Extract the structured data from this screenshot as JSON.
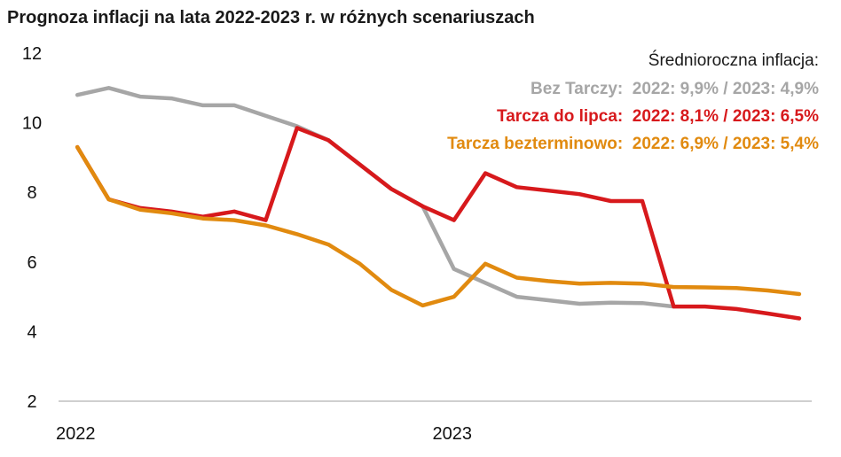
{
  "title": "Prognoza inflacji na lata 2022-2023 r. w różnych scenariuszach",
  "legend": {
    "heading": "Średnioroczna inflacja:",
    "entries": [
      {
        "label": "Bez Tarczy:",
        "value": "2022: 9,9% / 2023: 4,9%",
        "color": "#a6a6a6"
      },
      {
        "label": "Tarcza do lipca:",
        "value": "2022: 8,1% / 2023: 6,5%",
        "color": "#d7191c"
      },
      {
        "label": "Tarcza bezterminowo:",
        "value": "2022: 6,9% / 2023: 5,4%",
        "color": "#e18a0f"
      }
    ]
  },
  "chart_data": {
    "type": "line",
    "title": "Prognoza inflacji na lata 2022-2023 r. w różnych scenariuszach",
    "x": [
      1,
      2,
      3,
      4,
      5,
      6,
      7,
      8,
      9,
      10,
      11,
      12,
      13,
      14,
      15,
      16,
      17,
      18,
      19,
      20,
      21,
      22,
      23,
      24
    ],
    "x_tick_labels": [
      {
        "x": 1,
        "label": "2022"
      },
      {
        "x": 13,
        "label": "2023"
      }
    ],
    "xlim": [
      0.4,
      24.4
    ],
    "ylim": [
      2,
      12
    ],
    "y_ticks": [
      2,
      4,
      6,
      8,
      10,
      12
    ],
    "grid": false,
    "series": [
      {
        "name": "Bez Tarczy",
        "color": "#a6a6a6",
        "values": [
          10.8,
          11.0,
          10.75,
          10.7,
          10.5,
          10.5,
          10.2,
          9.9,
          9.5,
          8.8,
          8.1,
          7.6,
          5.8,
          5.4,
          5.0,
          4.9,
          4.8,
          4.83,
          4.82,
          4.72,
          null,
          null,
          null,
          null
        ]
      },
      {
        "name": "Tarcza do lipca",
        "color": "#d7191c",
        "values": [
          9.3,
          7.8,
          7.55,
          7.45,
          7.3,
          7.45,
          7.2,
          9.85,
          9.5,
          8.8,
          8.1,
          7.6,
          7.2,
          8.55,
          8.15,
          8.05,
          7.95,
          7.75,
          7.75,
          4.72,
          4.72,
          4.65,
          4.52,
          4.38
        ]
      },
      {
        "name": "Tarcza bezterminowo",
        "color": "#e18a0f",
        "values": [
          9.3,
          7.8,
          7.5,
          7.4,
          7.25,
          7.2,
          7.05,
          6.8,
          6.5,
          5.95,
          5.2,
          4.75,
          5.0,
          5.95,
          5.55,
          5.45,
          5.38,
          5.4,
          5.38,
          5.28,
          5.27,
          5.25,
          5.18,
          5.08
        ]
      }
    ]
  }
}
